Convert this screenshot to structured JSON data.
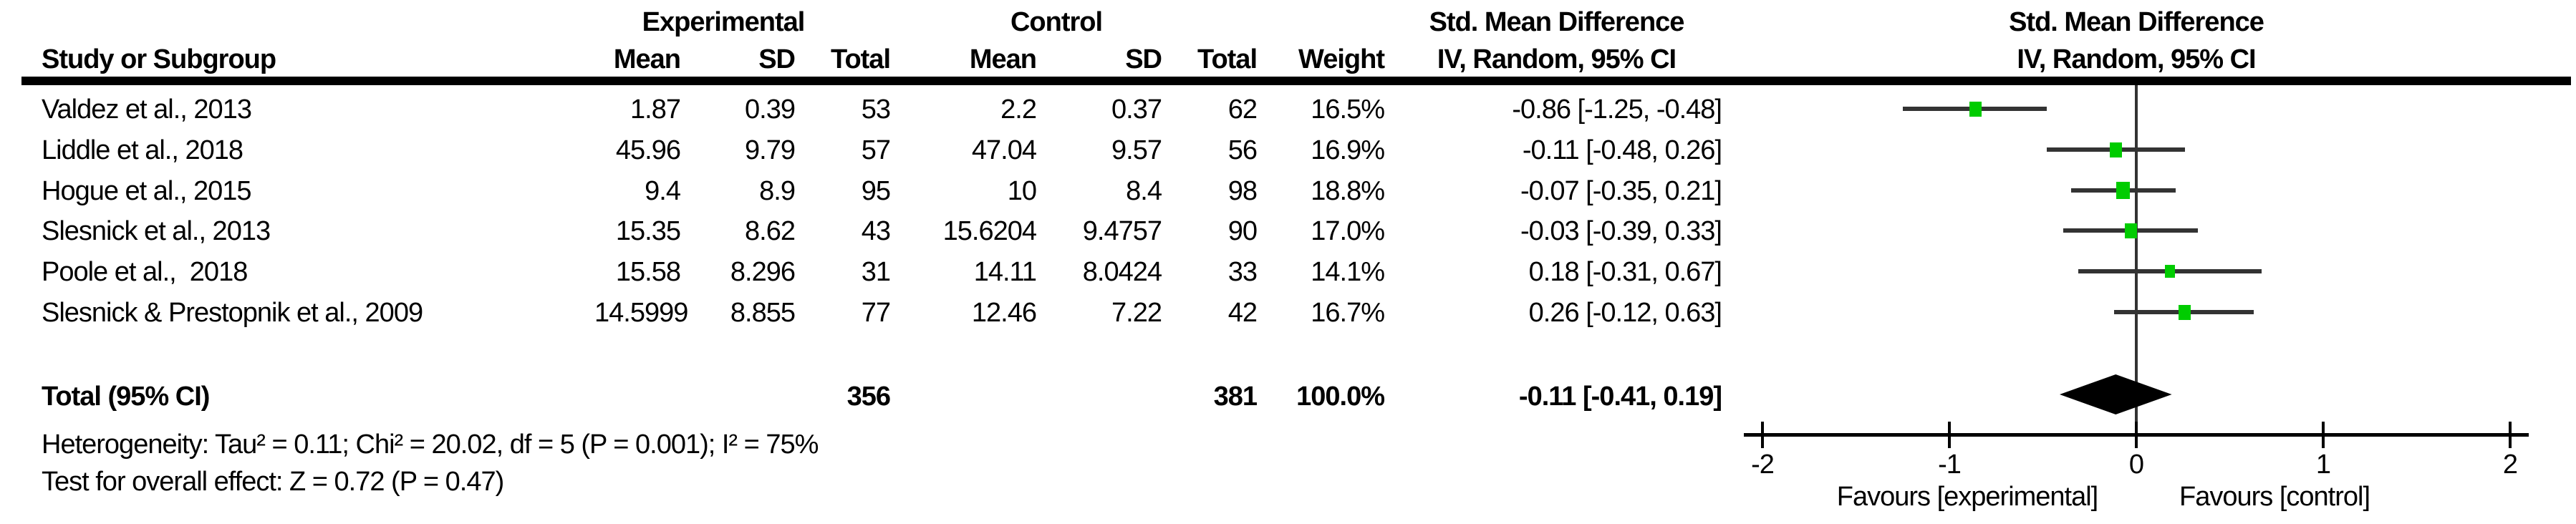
{
  "columns": {
    "study": "Study or Subgroup",
    "group1": "Experimental",
    "group2": "Control",
    "mean": "Mean",
    "sd": "SD",
    "total": "Total",
    "weight": "Weight"
  },
  "chart_data": {
    "type": "forest",
    "effect_measure": "Std. Mean Difference",
    "method": "IV, Random, 95% CI",
    "studies": [
      {
        "name": "Valdez et al., 2013",
        "exp": {
          "mean": "1.87",
          "sd": "0.39",
          "total": "53"
        },
        "ctl": {
          "mean": "2.2",
          "sd": "0.37",
          "total": "62"
        },
        "weight": "16.5%",
        "weight_value": 16.5,
        "ci_label": "-0.86 [-1.25, -0.48]",
        "est": -0.86,
        "ci": [
          -1.25,
          -0.48
        ]
      },
      {
        "name": "Liddle et al., 2018",
        "exp": {
          "mean": "45.96",
          "sd": "9.79",
          "total": "57"
        },
        "ctl": {
          "mean": "47.04",
          "sd": "9.57",
          "total": "56"
        },
        "weight": "16.9%",
        "weight_value": 16.9,
        "ci_label": "-0.11 [-0.48, 0.26]",
        "est": -0.11,
        "ci": [
          -0.48,
          0.26
        ]
      },
      {
        "name": "Hogue et al., 2015",
        "exp": {
          "mean": "9.4",
          "sd": "8.9",
          "total": "95"
        },
        "ctl": {
          "mean": "10",
          "sd": "8.4",
          "total": "98"
        },
        "weight": "18.8%",
        "weight_value": 18.8,
        "ci_label": "-0.07 [-0.35, 0.21]",
        "est": -0.07,
        "ci": [
          -0.35,
          0.21
        ]
      },
      {
        "name": "Slesnick et al., 2013",
        "exp": {
          "mean": "15.35",
          "sd": "8.62",
          "total": "43"
        },
        "ctl": {
          "mean": "15.6204",
          "sd": "9.4757",
          "total": "90"
        },
        "weight": "17.0%",
        "weight_value": 17.0,
        "ci_label": "-0.03 [-0.39, 0.33]",
        "est": -0.03,
        "ci": [
          -0.39,
          0.33
        ]
      },
      {
        "name": "Poole et al.,  2018",
        "exp": {
          "mean": "15.58",
          "sd": "8.296",
          "total": "31"
        },
        "ctl": {
          "mean": "14.11",
          "sd": "8.0424",
          "total": "33"
        },
        "weight": "14.1%",
        "weight_value": 14.1,
        "ci_label": "0.18 [-0.31, 0.67]",
        "est": 0.18,
        "ci": [
          -0.31,
          0.67
        ]
      },
      {
        "name": "Slesnick & Prestopnik et al., 2009",
        "exp": {
          "mean": "14.5999",
          "sd": "8.855",
          "total": "77"
        },
        "ctl": {
          "mean": "12.46",
          "sd": "7.22",
          "total": "42"
        },
        "weight": "16.7%",
        "weight_value": 16.7,
        "ci_label": "0.26 [-0.12, 0.63]",
        "est": 0.26,
        "ci": [
          -0.12,
          0.63
        ]
      }
    ],
    "total": {
      "label": "Total (95% CI)",
      "exp_total": "356",
      "ctl_total": "381",
      "weight": "100.0%",
      "ci_label": "-0.11 [-0.41, 0.19]",
      "est": -0.11,
      "ci": [
        -0.41,
        0.19
      ]
    },
    "heterogeneity": "Heterogeneity: Tau² = 0.11; Chi² = 20.02, df = 5 (P = 0.001); I² = 75%",
    "overall_effect": "Test for overall effect: Z = 0.72 (P = 0.47)",
    "axis": {
      "min": -2,
      "max": 2,
      "ticks": [
        -2,
        -1,
        0,
        1,
        2
      ],
      "tick_labels": [
        "-2",
        "-1",
        "0",
        "1",
        "2"
      ],
      "favours_left": "Favours [experimental]",
      "favours_right": "Favours [control]"
    }
  },
  "colors": {
    "marker_green": "#00CC00",
    "line": "#333333",
    "diamond": "#000000",
    "axis": "#000000"
  }
}
